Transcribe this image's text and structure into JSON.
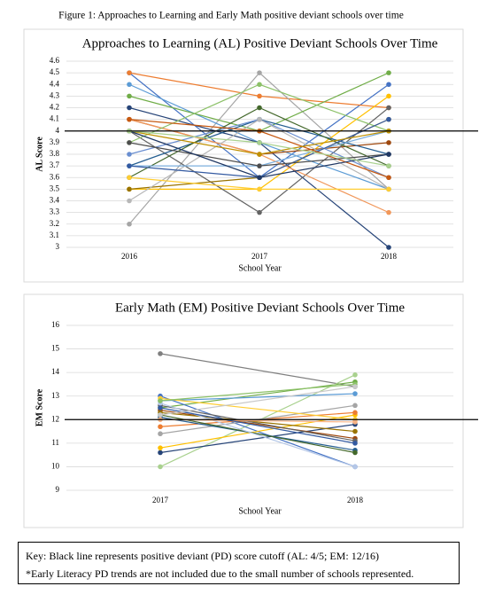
{
  "caption": "Figure 1: Approaches to Learning and Early Math positive deviant schools over time",
  "key": [
    "Key: Black line represents positive deviant (PD) score cutoff (AL: 4/5; EM: 12/16)",
    "*Early Literacy PD trends are not included due to the small number of schools represented."
  ],
  "chart_data": [
    {
      "type": "line",
      "title": "Approaches to Learning (AL) Positive Deviant Schools Over Time",
      "x_label": "School Year",
      "y_label": "AL Score",
      "categories": [
        "2016",
        "2017",
        "2018"
      ],
      "ylim": [
        3,
        4.6
      ],
      "yticks": [
        3,
        3.1,
        3.2,
        3.3,
        3.4,
        3.5,
        3.6,
        3.7,
        3.8,
        3.9,
        4,
        4.1,
        4.2,
        4.3,
        4.4,
        4.5,
        4.6
      ],
      "grid": true,
      "reference_line": 4,
      "reference_color": "#000000",
      "series": [
        {
          "color": "#4472c4",
          "values": [
            4.5,
            3.6,
            4.4
          ]
        },
        {
          "color": "#ed7d31",
          "values": [
            4.5,
            4.3,
            4.2
          ]
        },
        {
          "color": "#a5a5a5",
          "values": [
            3.2,
            4.5,
            3.5
          ]
        },
        {
          "color": "#ffc000",
          "values": [
            3.5,
            3.5,
            4.3
          ]
        },
        {
          "color": "#5b9bd5",
          "values": [
            4.4,
            3.9,
            3.5
          ]
        },
        {
          "color": "#70ad47",
          "values": [
            4.3,
            4.0,
            4.5
          ]
        },
        {
          "color": "#264478",
          "values": [
            4.2,
            3.9,
            3.0
          ]
        },
        {
          "color": "#9e480e",
          "values": [
            4.1,
            3.8,
            3.9
          ]
        },
        {
          "color": "#636363",
          "values": [
            4.0,
            3.3,
            4.2
          ]
        },
        {
          "color": "#997300",
          "values": [
            3.5,
            3.6,
            4.1
          ]
        },
        {
          "color": "#255e91",
          "values": [
            3.7,
            4.1,
            3.8
          ]
        },
        {
          "color": "#43682b",
          "values": [
            3.6,
            4.2,
            3.7
          ]
        },
        {
          "color": "#698ed0",
          "values": [
            3.8,
            4.1,
            3.6
          ]
        },
        {
          "color": "#f1975a",
          "values": [
            4.1,
            3.8,
            3.3
          ]
        },
        {
          "color": "#b7b7b7",
          "values": [
            3.4,
            4.1,
            3.5
          ]
        },
        {
          "color": "#ffcd33",
          "values": [
            3.6,
            3.5,
            3.5
          ]
        },
        {
          "color": "#7cafdd",
          "values": [
            3.7,
            3.7,
            4.0
          ]
        },
        {
          "color": "#8cc168",
          "values": [
            3.9,
            4.4,
            4.0
          ]
        },
        {
          "color": "#335aa1",
          "values": [
            3.7,
            3.6,
            4.1
          ]
        },
        {
          "color": "#c65911",
          "values": [
            4.1,
            4.0,
            3.6
          ]
        },
        {
          "color": "#4d4d4d",
          "values": [
            3.9,
            3.7,
            3.8
          ]
        },
        {
          "color": "#bf9000",
          "values": [
            4.0,
            3.8,
            4.0
          ]
        },
        {
          "color": "#203864",
          "values": [
            4.0,
            3.6,
            3.8
          ]
        },
        {
          "color": "#a9d18e",
          "values": [
            4.0,
            3.9,
            3.7
          ]
        }
      ]
    },
    {
      "type": "line",
      "title": "Early Math (EM) Positive Deviant Schools Over Time",
      "x_label": "School Year",
      "y_label": "EM Score",
      "categories": [
        "2017",
        "2018"
      ],
      "ylim": [
        9,
        16
      ],
      "yticks": [
        9,
        10,
        11,
        12,
        13,
        14,
        15,
        16
      ],
      "grid": true,
      "reference_line": 12,
      "reference_color": "#000000",
      "series": [
        {
          "color": "#7f7f7f",
          "values": [
            14.8,
            13.4
          ]
        },
        {
          "color": "#70ad47",
          "values": [
            12.5,
            13.6
          ]
        },
        {
          "color": "#a9d18e",
          "values": [
            10.0,
            13.9
          ]
        },
        {
          "color": "#4472c4",
          "values": [
            13.0,
            10.0
          ]
        },
        {
          "color": "#5b9bd5",
          "values": [
            12.8,
            13.1
          ]
        },
        {
          "color": "#264478",
          "values": [
            10.6,
            11.8
          ]
        },
        {
          "color": "#ffc000",
          "values": [
            10.8,
            12.2
          ]
        },
        {
          "color": "#ed7d31",
          "values": [
            11.7,
            12.3
          ]
        },
        {
          "color": "#a5a5a5",
          "values": [
            11.4,
            12.6
          ]
        },
        {
          "color": "#9e480e",
          "values": [
            12.4,
            11.2
          ]
        },
        {
          "color": "#997300",
          "values": [
            12.3,
            11.5
          ]
        },
        {
          "color": "#255e91",
          "values": [
            12.1,
            10.7
          ]
        },
        {
          "color": "#43682b",
          "values": [
            12.2,
            10.6
          ]
        },
        {
          "color": "#636363",
          "values": [
            12.6,
            11.1
          ]
        },
        {
          "color": "#ffcd33",
          "values": [
            12.9,
            12.0
          ]
        },
        {
          "color": "#b4c7e7",
          "values": [
            12.7,
            10.0
          ]
        },
        {
          "color": "#f4b183",
          "values": [
            12.0,
            11.9
          ]
        },
        {
          "color": "#335aa1",
          "values": [
            12.5,
            11.0
          ]
        },
        {
          "color": "#8cc168",
          "values": [
            12.8,
            13.5
          ]
        },
        {
          "color": "#c9c9c9",
          "values": [
            12.2,
            13.4
          ]
        }
      ]
    }
  ]
}
